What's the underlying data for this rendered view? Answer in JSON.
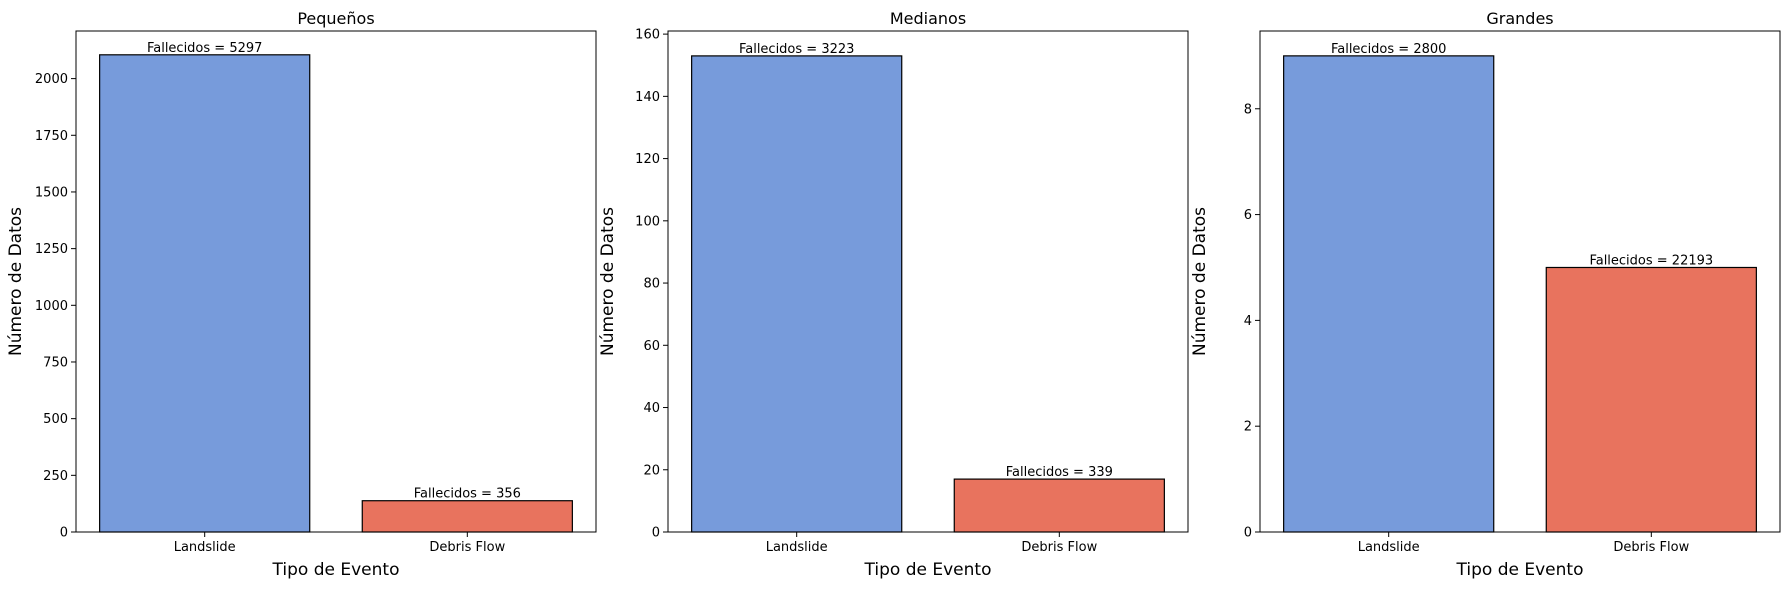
{
  "chart_data": [
    {
      "type": "bar",
      "title": "Pequeños",
      "xlabel": "Tipo de Evento",
      "ylabel": "Número de Datos",
      "categories": [
        "Landslide",
        "Debris Flow"
      ],
      "values": [
        2105,
        138
      ],
      "bar_labels": [
        "Fallecidos = 5297",
        "Fallecidos = 356"
      ],
      "colors": [
        "#779bdb",
        "#e8735e"
      ],
      "ylim": [
        0,
        2210
      ],
      "yticks": [
        0,
        250,
        500,
        750,
        1000,
        1250,
        1500,
        1750,
        2000
      ]
    },
    {
      "type": "bar",
      "title": "Medianos",
      "xlabel": "Tipo de Evento",
      "ylabel": "Número de Datos",
      "categories": [
        "Landslide",
        "Debris Flow"
      ],
      "values": [
        153,
        17
      ],
      "bar_labels": [
        "Fallecidos = 3223",
        "Fallecidos = 339"
      ],
      "colors": [
        "#779bdb",
        "#e8735e"
      ],
      "ylim": [
        0,
        161
      ],
      "yticks": [
        0,
        20,
        40,
        60,
        80,
        100,
        120,
        140,
        160
      ]
    },
    {
      "type": "bar",
      "title": "Grandes",
      "xlabel": "Tipo de Evento",
      "ylabel": "Número de Datos",
      "categories": [
        "Landslide",
        "Debris Flow"
      ],
      "values": [
        9,
        5
      ],
      "bar_labels": [
        "Fallecidos = 2800",
        "Fallecidos = 22193"
      ],
      "colors": [
        "#779bdb",
        "#e8735e"
      ],
      "ylim": [
        0,
        9.47
      ],
      "yticks": [
        0,
        2,
        4,
        6,
        8
      ]
    }
  ]
}
